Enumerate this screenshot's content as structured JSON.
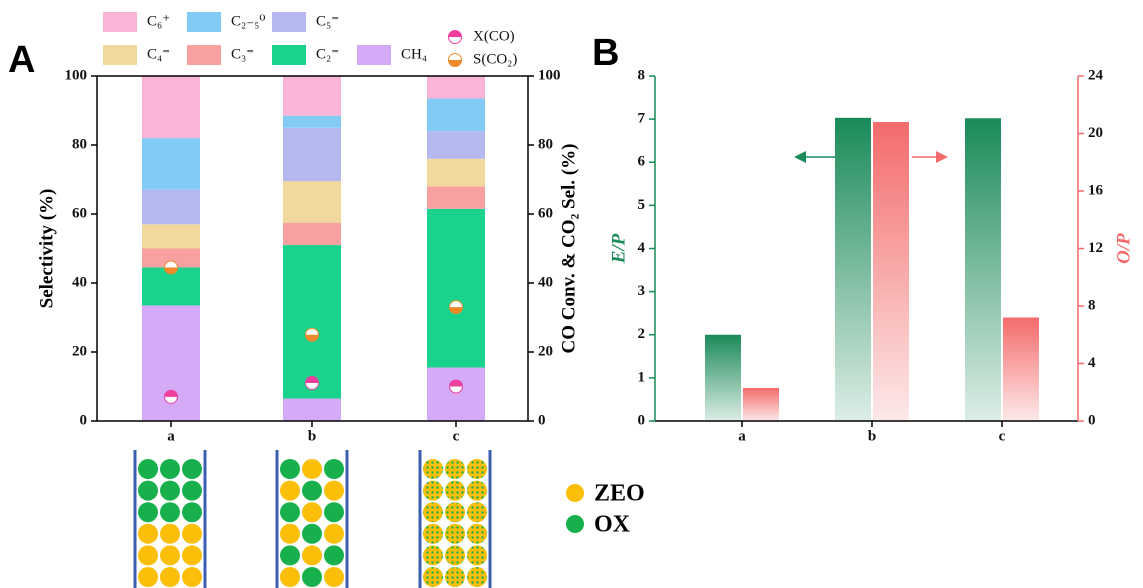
{
  "panels": [
    "A",
    "B"
  ],
  "chart_data": [
    {
      "type": "bar",
      "stacked": true,
      "categories": [
        "a",
        "b",
        "c"
      ],
      "ylabel": "Selectivity (%)",
      "y2label": "CO Conv. & CO₂ Sel. (%)",
      "ylim": [
        0,
        100
      ],
      "yticks": [
        0,
        20,
        40,
        60,
        80,
        100
      ],
      "y2lim": [
        0,
        100
      ],
      "y2ticks": [
        0,
        20,
        40,
        60,
        80,
        100
      ],
      "series": [
        {
          "name": "CH₄",
          "color": "#d4a9f6",
          "values": [
            33.5,
            6.5,
            15.5
          ]
        },
        {
          "name": "C₂⁼",
          "color": "#19d38c",
          "values": [
            11,
            44.5,
            46
          ]
        },
        {
          "name": "C₃⁼",
          "color": "#f8a1a1",
          "values": [
            5.5,
            6.5,
            6.5
          ]
        },
        {
          "name": "C₄⁼",
          "color": "#f2d89c",
          "values": [
            7,
            12,
            8
          ]
        },
        {
          "name": "C₅⁼",
          "color": "#b5b9f0",
          "values": [
            10,
            15.5,
            8
          ]
        },
        {
          "name": "C₂₋₅⁰",
          "color": "#82cbf5",
          "values": [
            15,
            3.5,
            9.5
          ]
        },
        {
          "name": "C₆⁺",
          "color": "#f9b4d8",
          "values": [
            18,
            11.5,
            6.5
          ]
        },
        {
          "name": "X(CO)",
          "type": "scatter",
          "axis": "y2",
          "color": "#ee3e9e",
          "values": [
            7,
            11,
            10
          ]
        },
        {
          "name": "S(CO₂)",
          "type": "scatter",
          "axis": "y2",
          "color": "#f0892a",
          "values": [
            44.5,
            25,
            33
          ]
        }
      ]
    },
    {
      "type": "bar",
      "categories": [
        "a",
        "b",
        "c"
      ],
      "ylabel": "E/P",
      "y2label": "O/P",
      "ylim": [
        0,
        8
      ],
      "yticks": [
        0,
        1,
        2,
        3,
        4,
        5,
        6,
        7,
        8
      ],
      "y2lim": [
        0,
        24
      ],
      "y2ticks": [
        0,
        4,
        8,
        12,
        16,
        20,
        24
      ],
      "series": [
        {
          "color": "#1a8a58",
          "values": [
            2.0,
            7.03,
            7.02
          ]
        },
        {
          "axis": "y2",
          "color": "#f46b6b",
          "values": [
            2.3,
            20.8,
            7.2
          ]
        }
      ]
    }
  ],
  "diagram": {
    "legend": [
      {
        "label": "ZEO",
        "color": "#fbbf0a"
      },
      {
        "label": "OX",
        "color": "#18b04c"
      }
    ]
  }
}
